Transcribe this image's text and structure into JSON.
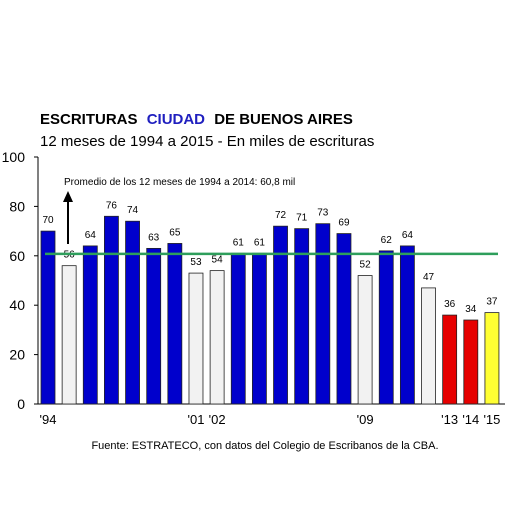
{
  "chart_data": {
    "type": "bar",
    "title": [
      "ESCRITURAS",
      "CIUDAD",
      "DE BUENOS AIRES"
    ],
    "title_colors": [
      "#000000",
      "#1f1fbf",
      "#000000"
    ],
    "subtitle": "12 meses de 1994 a 2015 - En miles de escrituras",
    "annotation": "Promedio de los 12 meses de 1994 a 2014: 60,8 mil",
    "average": 60.8,
    "average_color": "#2e9e5b",
    "source": "Fuente: ESTRATECO, con datos del Colegio de Escribanos de la CBA.",
    "categories": [
      "'94",
      null,
      null,
      null,
      null,
      null,
      null,
      "'01",
      "'02",
      null,
      null,
      null,
      null,
      null,
      null,
      "'09",
      null,
      null,
      null,
      "'13",
      "'14",
      "'15"
    ],
    "values": [
      70,
      56,
      64,
      76,
      74,
      63,
      65,
      53,
      54,
      61,
      61,
      72,
      71,
      73,
      69,
      52,
      62,
      64,
      47,
      36,
      34,
      37
    ],
    "colors": [
      "#0000cc",
      "#f2f2f2",
      "#0000cc",
      "#0000cc",
      "#0000cc",
      "#0000cc",
      "#0000cc",
      "#f2f2f2",
      "#f2f2f2",
      "#0000cc",
      "#0000cc",
      "#0000cc",
      "#0000cc",
      "#0000cc",
      "#0000cc",
      "#f2f2f2",
      "#0000cc",
      "#0000cc",
      "#f2f2f2",
      "#e60000",
      "#e60000",
      "#ffff33"
    ],
    "ylim": [
      0,
      100
    ],
    "yticks": [
      0,
      20,
      40,
      60,
      80,
      100
    ],
    "grid": false
  }
}
